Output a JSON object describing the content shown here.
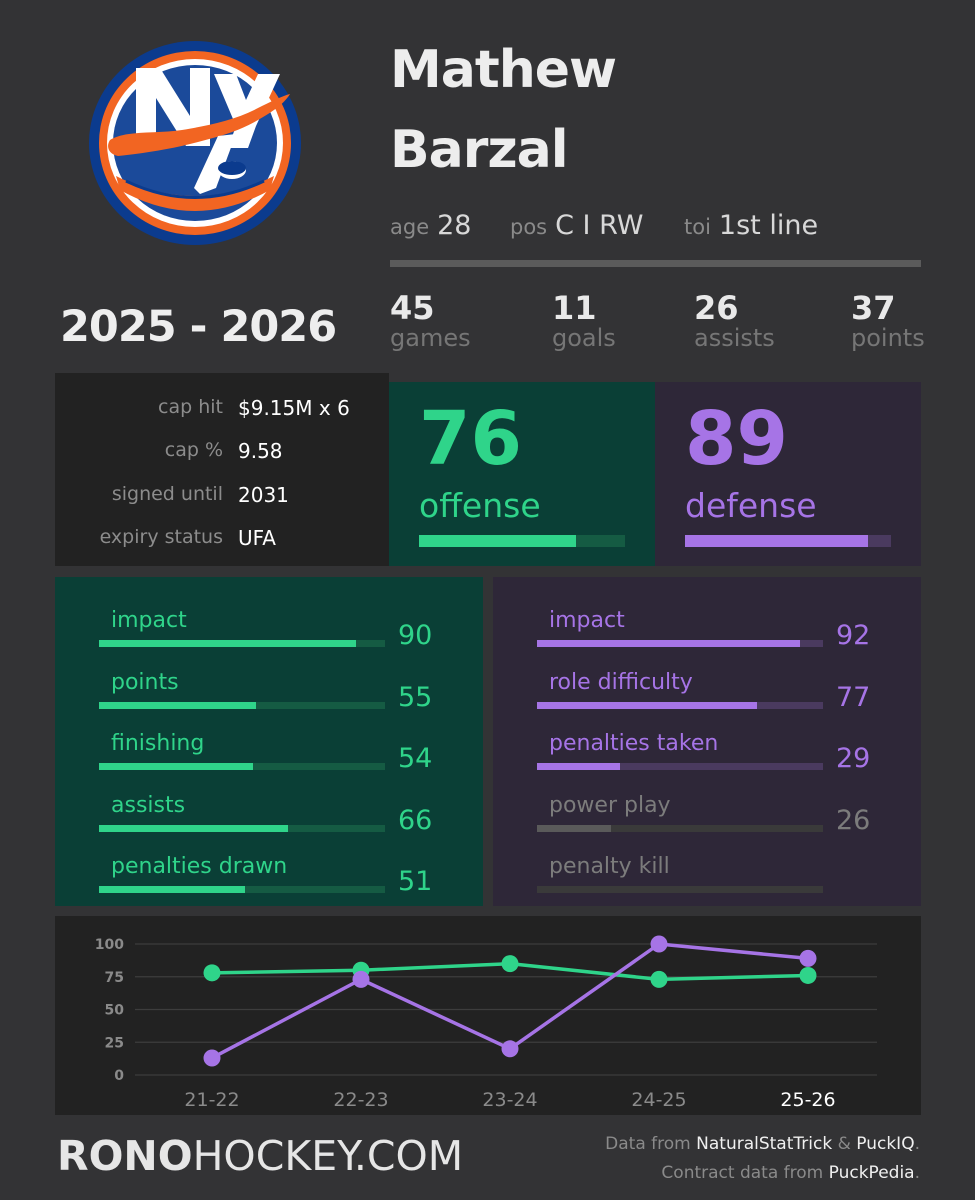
{
  "player": {
    "first_name": "Mathew",
    "last_name": "Barzal",
    "age_label": "age",
    "age": "28",
    "pos_label": "pos",
    "pos": "C I RW",
    "toi_label": "toi",
    "toi": "1st line"
  },
  "season": "2025 - 2026",
  "stats": [
    {
      "value": "45",
      "label": "games"
    },
    {
      "value": "11",
      "label": "goals"
    },
    {
      "value": "26",
      "label": "assists"
    },
    {
      "value": "37",
      "label": "points"
    }
  ],
  "contract": [
    {
      "label": "cap hit",
      "value": "$9.15M x 6"
    },
    {
      "label": "cap %",
      "value": "9.58"
    },
    {
      "label": "signed until",
      "value": "2031"
    },
    {
      "label": "expiry status",
      "value": "UFA"
    }
  ],
  "offense": {
    "score": "76",
    "label": "offense",
    "fraction": 0.76
  },
  "defense": {
    "score": "89",
    "label": "defense",
    "fraction": 0.89
  },
  "offense_metrics": [
    {
      "label": "impact",
      "value": "90",
      "fraction": 0.9
    },
    {
      "label": "points",
      "value": "55",
      "fraction": 0.55
    },
    {
      "label": "finishing",
      "value": "54",
      "fraction": 0.54
    },
    {
      "label": "assists",
      "value": "66",
      "fraction": 0.66
    },
    {
      "label": "penalties drawn",
      "value": "51",
      "fraction": 0.51
    }
  ],
  "defense_metrics": [
    {
      "label": "impact",
      "value": "92",
      "fraction": 0.92,
      "active": true
    },
    {
      "label": "role difficulty",
      "value": "77",
      "fraction": 0.77,
      "active": true
    },
    {
      "label": "penalties taken",
      "value": "29",
      "fraction": 0.29,
      "active": true
    },
    {
      "label": "power play",
      "value": "26",
      "fraction": 0.26,
      "active": false
    },
    {
      "label": "penalty kill",
      "value": "",
      "fraction": 0,
      "active": false
    }
  ],
  "colors": {
    "offense": "#2fd48a",
    "offense_track": "#155b43",
    "defense": "#a674e6",
    "defense_track": "#4a3a5f",
    "inactive": "#5a5a5a",
    "inactive_text": "#7c7c7c",
    "background": "#333335"
  },
  "chart_data": {
    "type": "line",
    "x": [
      "21-22",
      "22-23",
      "23-24",
      "24-25",
      "25-26"
    ],
    "yticks": [
      0,
      25,
      50,
      75,
      100
    ],
    "ylim": [
      0,
      100
    ],
    "grid": true,
    "highlight_x": "25-26",
    "series": [
      {
        "key": "offense",
        "values": [
          78,
          80,
          85,
          73,
          76
        ]
      },
      {
        "key": "defense",
        "values": [
          13,
          73,
          20,
          100,
          89
        ]
      }
    ]
  },
  "footer": {
    "brand_bold": "RONO",
    "brand_light": "HOCKEY.COM",
    "credit_line1_prefix": "Data from ",
    "credit_source1": "NaturalStatTrick",
    "credit_amp": " & ",
    "credit_source2": "PuckIQ",
    "credit_dot1": ".",
    "credit_line2_prefix": "Contract data from ",
    "credit_source3": "PuckPedia",
    "credit_dot2": "."
  }
}
